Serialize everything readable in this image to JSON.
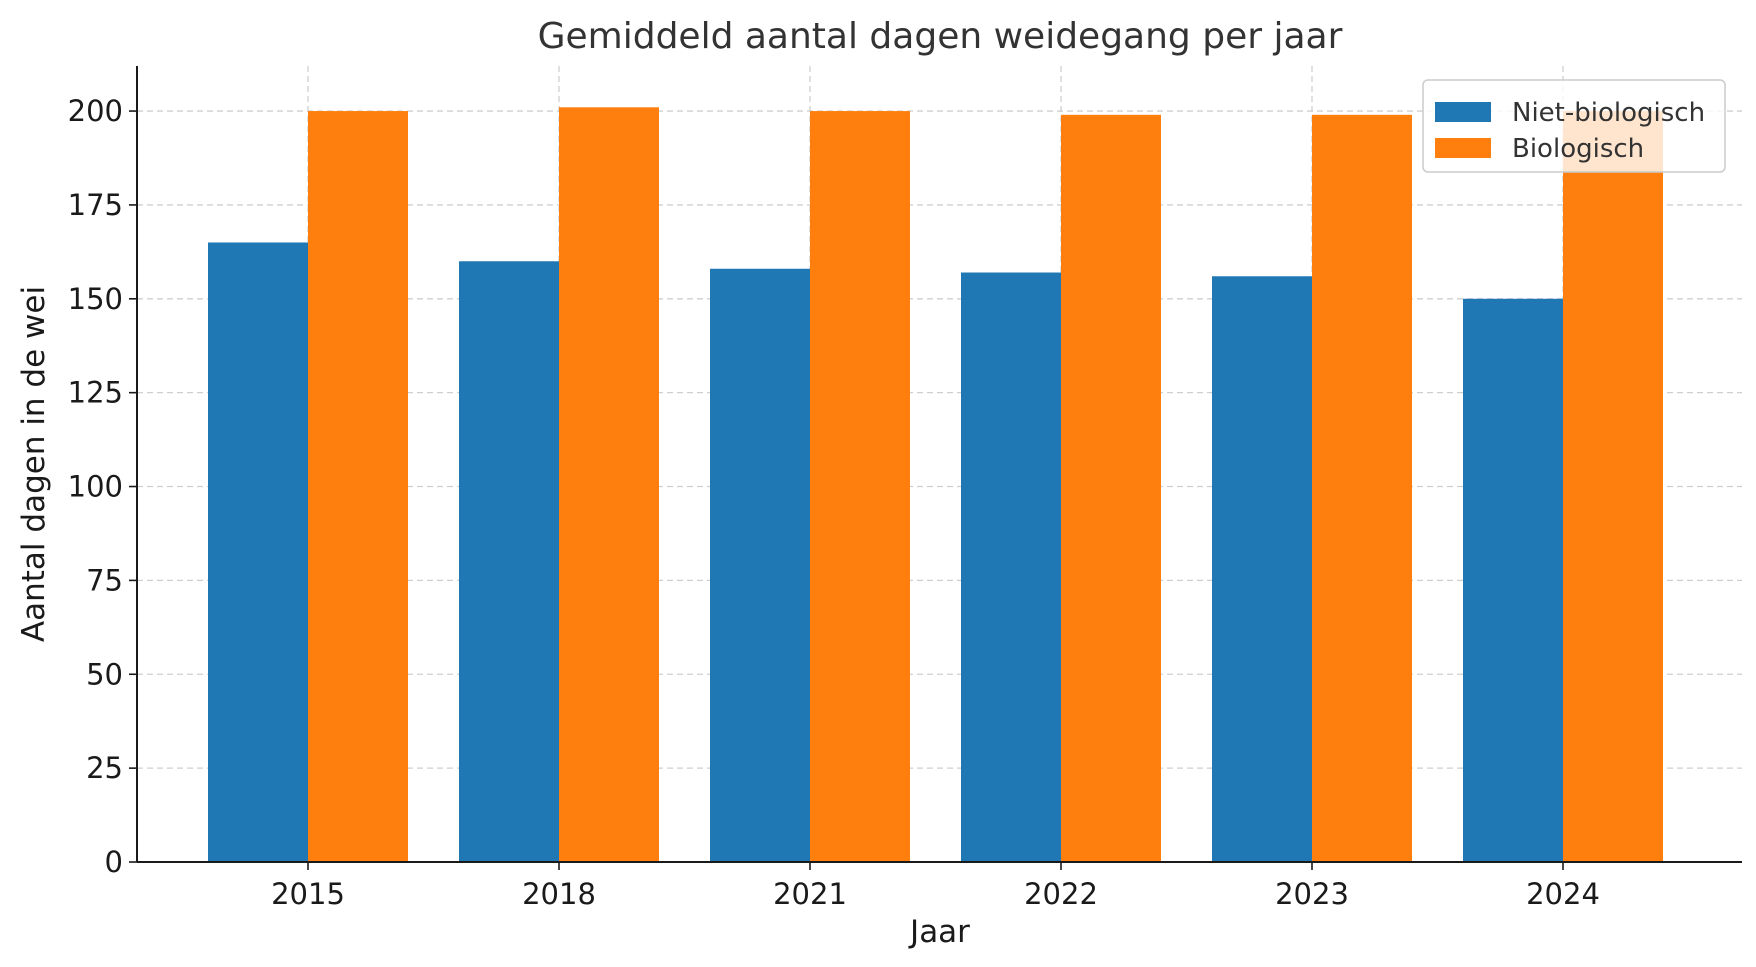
{
  "chart_data": {
    "type": "bar",
    "title": "Gemiddeld aantal dagen weidegang per jaar",
    "xlabel": "Jaar",
    "ylabel": "Aantal dagen in de wei",
    "categories": [
      "2015",
      "2018",
      "2021",
      "2022",
      "2023",
      "2024"
    ],
    "series": [
      {
        "name": "Niet-biologisch",
        "color": "#1f77b4",
        "values": [
          165,
          160,
          158,
          157,
          156,
          150
        ]
      },
      {
        "name": "Biologisch",
        "color": "#ff7f0e",
        "values": [
          200,
          201,
          200,
          199,
          199,
          200
        ]
      }
    ],
    "ylim": [
      0,
      212
    ],
    "yticks": [
      0,
      25,
      50,
      75,
      100,
      125,
      150,
      175,
      200
    ],
    "ytick_labels": [
      "0",
      "25",
      "50",
      "75",
      "100",
      "125",
      "150",
      "175",
      "200"
    ],
    "grid": true,
    "legend_position": "top-right"
  }
}
